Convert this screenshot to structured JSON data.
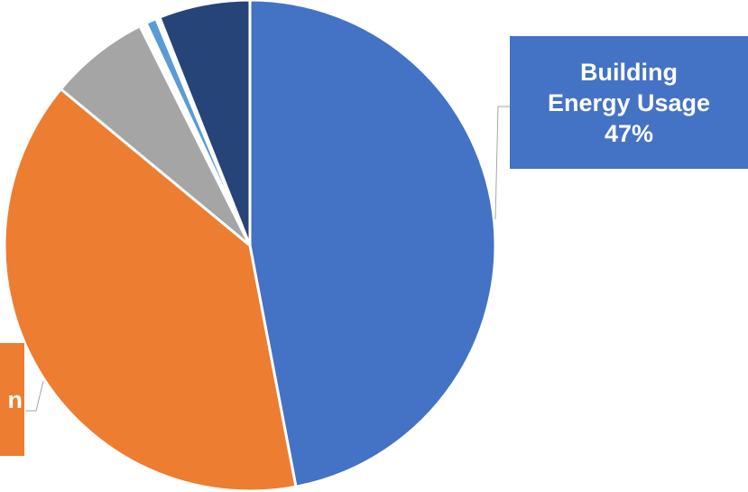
{
  "chart_data": {
    "type": "pie",
    "slices": [
      {
        "name": "Building Energy Usage",
        "percent": 47,
        "color": "#4472C4"
      },
      {
        "name": "",
        "percent": 39,
        "color": "#ED7D31"
      },
      {
        "name": "",
        "percent": 6.6,
        "color": "#A5A5A5"
      },
      {
        "name": "",
        "percent": 0.45,
        "color": "#FFFFFF"
      },
      {
        "name": "",
        "percent": 0.7,
        "color": "#5B9BD5"
      },
      {
        "name": "",
        "percent": 0.25,
        "color": "#FFFFFF"
      },
      {
        "name": "",
        "percent": 6.0,
        "color": "#264478"
      }
    ],
    "labels": {
      "building": "Building\nEnergy Usage\n47%",
      "clipped": "n"
    },
    "legend": "none"
  }
}
